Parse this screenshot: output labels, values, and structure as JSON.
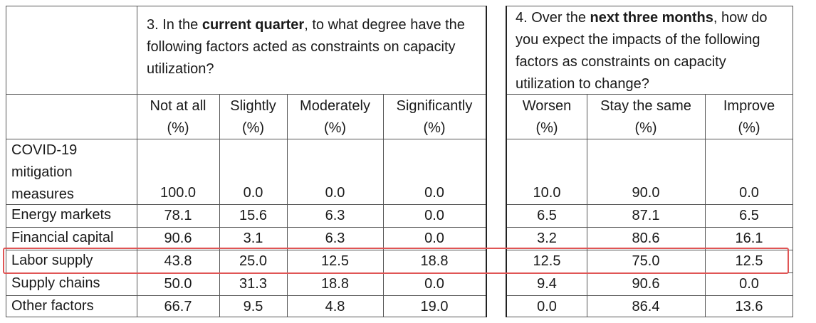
{
  "questions": {
    "q3": {
      "prefix": "3. In the ",
      "bold": "current quarter",
      "suffix": ", to what degree have the following factors acted as constraints on capacity utilization?"
    },
    "q4": {
      "prefix": "4. Over the ",
      "bold": "next three months",
      "suffix": ", how do you expect the impacts of the following factors as constraints on capacity utilization to change?"
    }
  },
  "columns": [
    {
      "label": "Not at all",
      "unit": "(%)"
    },
    {
      "label": "Slightly",
      "unit": "(%)"
    },
    {
      "label": "Moderately",
      "unit": "(%)"
    },
    {
      "label": "Significantly",
      "unit": "(%)"
    },
    {
      "label": "Worsen",
      "unit": "(%)"
    },
    {
      "label": "Stay the same",
      "unit": "(%)"
    },
    {
      "label": "Improve",
      "unit": "(%)"
    }
  ],
  "rows": [
    {
      "label": "COVID-19 mitigation measures",
      "values": [
        "100.0",
        "0.0",
        "0.0",
        "0.0",
        "10.0",
        "90.0",
        "0.0"
      ]
    },
    {
      "label": "Energy markets",
      "values": [
        "78.1",
        "15.6",
        "6.3",
        "0.0",
        "6.5",
        "87.1",
        "6.5"
      ]
    },
    {
      "label": "Financial capital",
      "values": [
        "90.6",
        "3.1",
        "6.3",
        "0.0",
        "3.2",
        "80.6",
        "16.1"
      ]
    },
    {
      "label": "Labor supply",
      "values": [
        "43.8",
        "25.0",
        "12.5",
        "18.8",
        "12.5",
        "75.0",
        "12.5"
      ],
      "highlighted": true
    },
    {
      "label": "Supply chains",
      "values": [
        "50.0",
        "31.3",
        "18.8",
        "0.0",
        "9.4",
        "90.6",
        "0.0"
      ]
    },
    {
      "label": "Other factors",
      "values": [
        "66.7",
        "9.5",
        "4.8",
        "19.0",
        "0.0",
        "86.4",
        "13.6"
      ]
    }
  ],
  "highlight_color": "#e05555"
}
